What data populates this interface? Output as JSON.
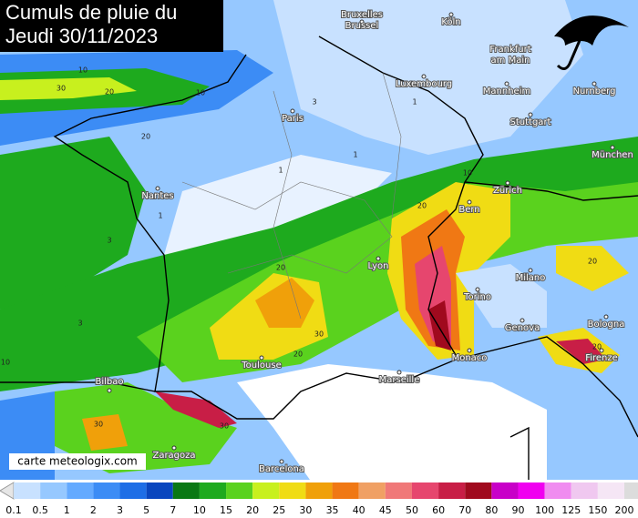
{
  "title": {
    "lines": [
      "Cumuls de pluie du",
      "Jeudi 30/11/2023"
    ]
  },
  "cities": [
    "Bruxelles",
    "Brussel",
    "Köln",
    "Frankfurt",
    "am Main",
    "Luxembourg",
    "Mannheim",
    "Nurnberg",
    "Paris",
    "Stuttgart",
    "München",
    "Nantes",
    "Zürich",
    "Bern",
    "Lyon",
    "Milano",
    "Torino",
    "Genova",
    "Bologna",
    "Monaco",
    "Firenze",
    "Marseille",
    "Toulouse",
    "Bilbao",
    "Zaragoza",
    "Barcelona"
  ],
  "contour_labels": [
    30,
    20,
    10,
    10,
    20,
    20,
    30,
    20,
    30,
    20,
    20,
    10,
    3,
    1,
    1,
    3,
    1,
    10,
    30,
    20,
    1,
    3
  ],
  "credit": "carte meteologix.com",
  "legend": {
    "levels": [
      0.1,
      0.5,
      1,
      2,
      3,
      5,
      7,
      10,
      15,
      20,
      25,
      30,
      35,
      40,
      45,
      50,
      60,
      70,
      80,
      90,
      100,
      125,
      150,
      200
    ],
    "colors": [
      "#c8e1ff",
      "#96c8ff",
      "#64aaff",
      "#3c8cf5",
      "#1e6ee6",
      "#0a46be",
      "#0a7814",
      "#1eaa1e",
      "#5ad21e",
      "#c8f01e",
      "#f0dc14",
      "#f0a00a",
      "#f07814",
      "#f0a064",
      "#f07878",
      "#e6466e",
      "#c81e46",
      "#a00a1e",
      "#c800c8",
      "#f000f0",
      "#f08cf0",
      "#f0c8f0",
      "#f5e6f5",
      "#dcdcdc"
    ]
  }
}
